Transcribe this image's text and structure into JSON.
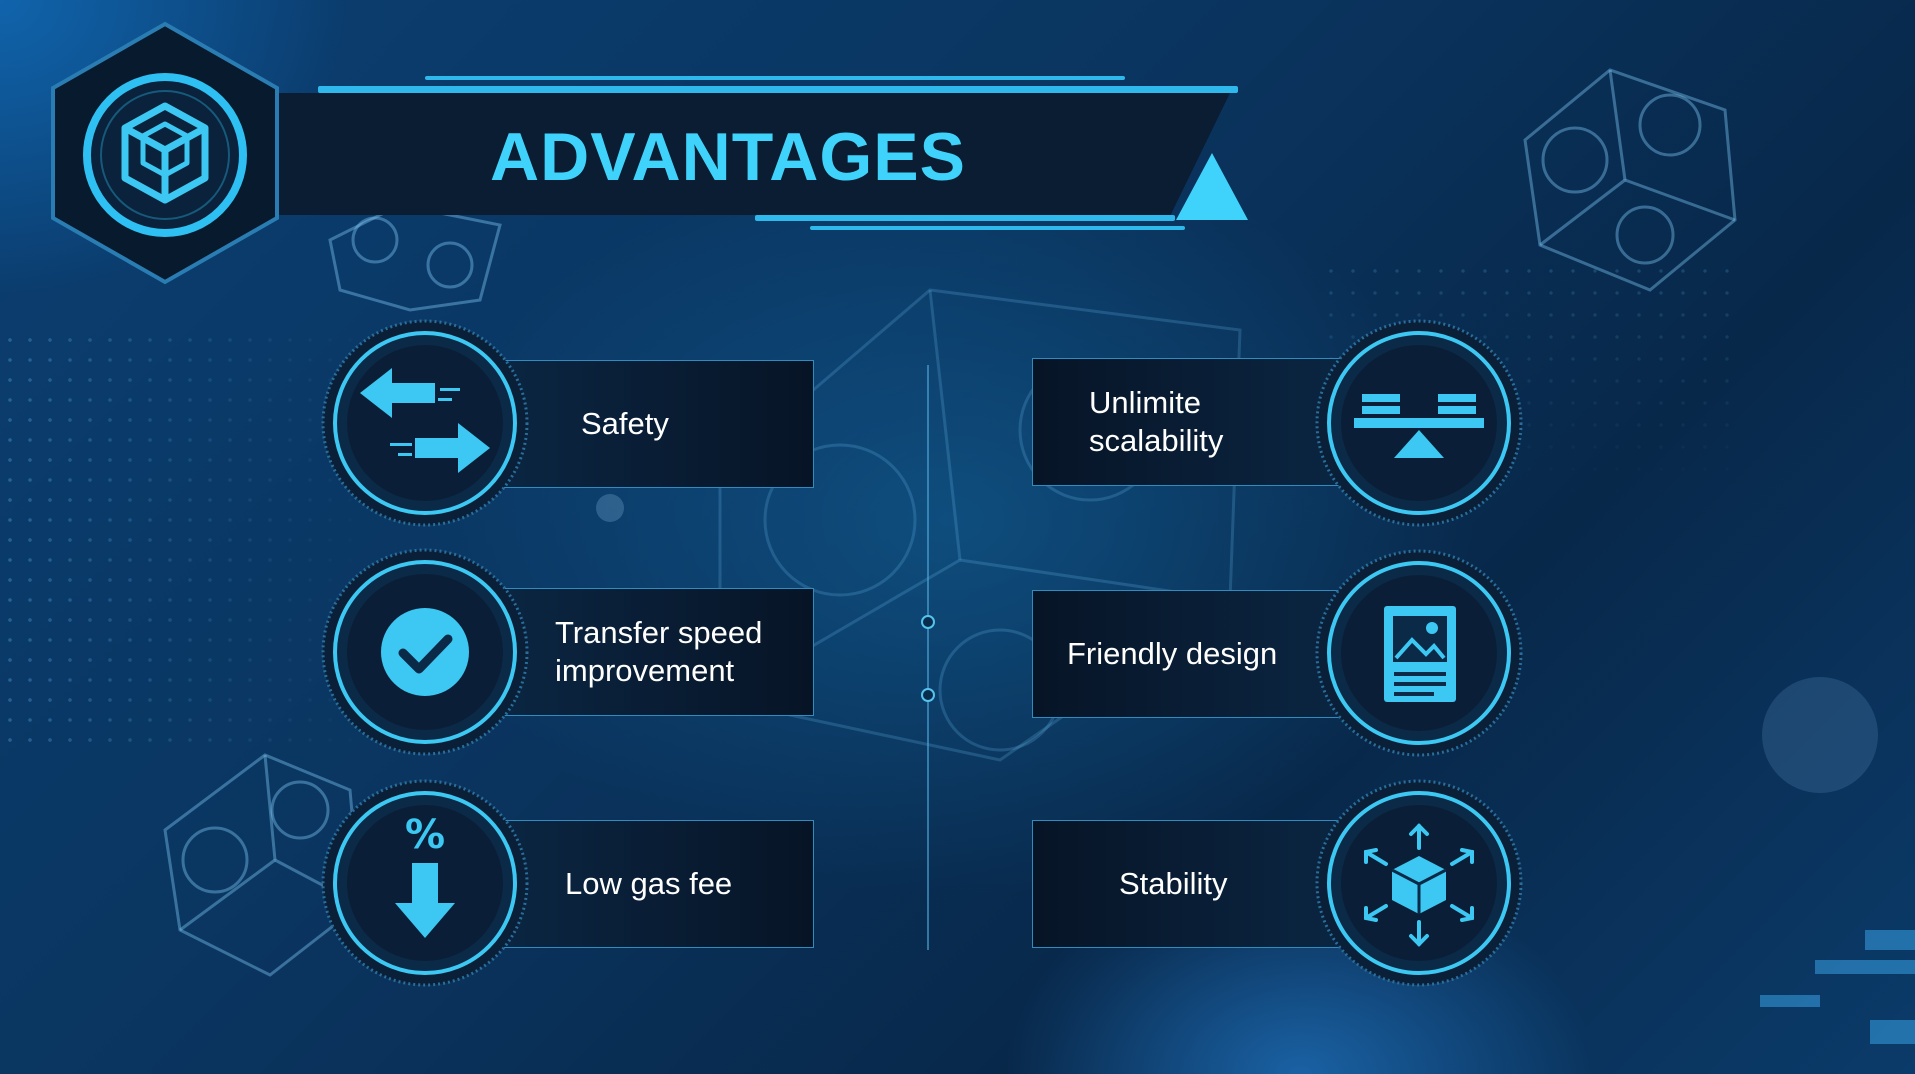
{
  "title": "ADVANTAGES",
  "colors": {
    "accent": "#3fd3fb",
    "card_border": "#2f8cc0",
    "icon_fill": "#3cc8f2",
    "banner": "#0a1d33"
  },
  "logo_icon": "cube-network-icon",
  "advantages_left": [
    {
      "label_line1": "Safety",
      "label_line2": "",
      "icon": "swap-arrows-icon"
    },
    {
      "label_line1": "Transfer speed",
      "label_line2": "improvement",
      "icon": "check-circle-icon"
    },
    {
      "label_line1": "Low gas fee",
      "label_line2": "",
      "icon": "percent-down-arrow-icon"
    }
  ],
  "advantages_right": [
    {
      "label_line1": "Unlimite",
      "label_line2": "scalability",
      "icon": "balance-scale-icon"
    },
    {
      "label_line1": "Friendly design",
      "label_line2": "",
      "icon": "document-image-icon"
    },
    {
      "label_line1": "Stability",
      "label_line2": "",
      "icon": "cube-expand-icon"
    }
  ]
}
